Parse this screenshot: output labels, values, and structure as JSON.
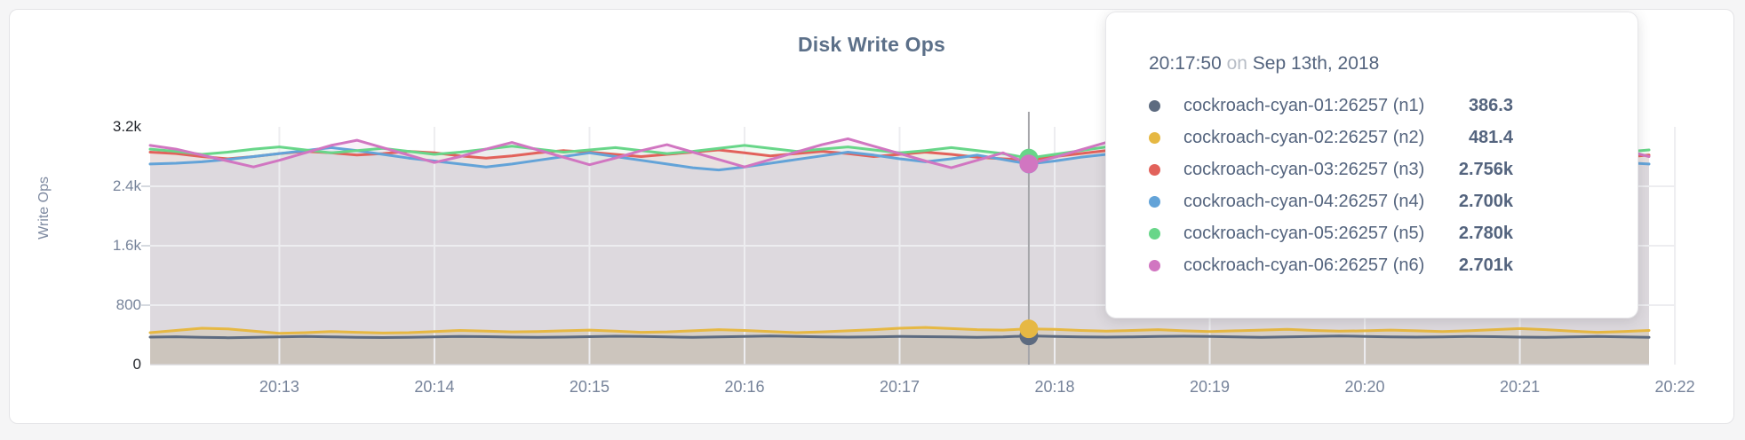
{
  "chart": {
    "title": "Disk Write Ops",
    "ylabel": "Write Ops"
  },
  "chart_data": {
    "type": "line",
    "title": "Disk Write Ops",
    "xlabel": "",
    "ylabel": "Write Ops",
    "ylim": [
      0,
      3200
    ],
    "grid": true,
    "legend_position": "tooltip",
    "x_start": "20:12:10",
    "x_step_seconds": 10,
    "x_ticks": [
      "20:13",
      "20:14",
      "20:15",
      "20:16",
      "20:17",
      "20:18",
      "20:19",
      "20:20",
      "20:21",
      "20:22"
    ],
    "y_ticks": [
      {
        "label": "3.2k",
        "value": 3200,
        "dark": true,
        "gridline": false
      },
      {
        "label": "2.4k",
        "value": 2400,
        "dark": false,
        "gridline": true
      },
      {
        "label": "1.6k",
        "value": 1600,
        "dark": false,
        "gridline": true
      },
      {
        "label": "800",
        "value": 800,
        "dark": false,
        "gridline": true
      },
      {
        "label": "0",
        "value": 0,
        "dark": true,
        "gridline": false
      }
    ],
    "hover_index": 34,
    "hover_time": "20:17:50",
    "series": [
      {
        "name": "cockroach-cyan-01:26257 (n1)",
        "color": "#5d6b80",
        "fill_opacity": 0.15,
        "values": [
          370,
          375,
          368,
          362,
          366,
          372,
          378,
          374,
          368,
          364,
          368,
          374,
          380,
          376,
          370,
          366,
          370,
          376,
          382,
          378,
          372,
          368,
          372,
          378,
          384,
          380,
          374,
          370,
          374,
          380,
          376,
          372,
          368,
          372,
          386.3,
          380,
          374,
          370,
          374,
          378,
          382,
          378,
          372,
          368,
          372,
          378,
          384,
          380,
          374,
          370,
          374,
          380,
          376,
          370,
          366,
          372,
          378,
          374,
          368
        ]
      },
      {
        "name": "cockroach-cyan-02:26257 (n2)",
        "color": "#e6b843",
        "fill_opacity": 0.18,
        "values": [
          430,
          460,
          490,
          480,
          450,
          420,
          430,
          445,
          435,
          425,
          430,
          445,
          460,
          450,
          440,
          445,
          455,
          465,
          450,
          435,
          440,
          455,
          470,
          460,
          445,
          430,
          440,
          455,
          470,
          490,
          500,
          485,
          470,
          465,
          481.4,
          475,
          460,
          450,
          460,
          470,
          455,
          445,
          455,
          465,
          475,
          460,
          450,
          455,
          465,
          455,
          445,
          455,
          470,
          485,
          470,
          450,
          435,
          445,
          460
        ]
      },
      {
        "name": "cockroach-cyan-03:26257 (n3)",
        "color": "#e2625b",
        "fill_opacity": 0.1,
        "values": [
          2860,
          2840,
          2800,
          2770,
          2800,
          2840,
          2870,
          2850,
          2820,
          2840,
          2870,
          2850,
          2810,
          2780,
          2810,
          2850,
          2880,
          2860,
          2830,
          2800,
          2830,
          2860,
          2890,
          2850,
          2810,
          2840,
          2870,
          2840,
          2800,
          2830,
          2860,
          2830,
          2790,
          2770,
          2756,
          2800,
          2840,
          2880,
          2910,
          2860,
          2820,
          2850,
          2880,
          2850,
          2810,
          2840,
          2870,
          2900,
          2860,
          2820,
          2850,
          2880,
          2840,
          2800,
          2830,
          2860,
          2830,
          2790,
          2820
        ]
      },
      {
        "name": "cockroach-cyan-04:26257 (n4)",
        "color": "#63a3d8",
        "fill_opacity": 0.1,
        "values": [
          2700,
          2710,
          2730,
          2760,
          2800,
          2840,
          2880,
          2920,
          2880,
          2830,
          2780,
          2740,
          2700,
          2660,
          2700,
          2750,
          2800,
          2850,
          2800,
          2750,
          2700,
          2650,
          2620,
          2660,
          2710,
          2760,
          2810,
          2860,
          2820,
          2770,
          2730,
          2770,
          2820,
          2760,
          2700,
          2740,
          2790,
          2830,
          2780,
          2730,
          2690,
          2730,
          2780,
          2830,
          2870,
          2820,
          2770,
          2720,
          2760,
          2810,
          2860,
          2820,
          2770,
          2730,
          2770,
          2820,
          2770,
          2720,
          2700
        ]
      },
      {
        "name": "cockroach-cyan-05:26257 (n5)",
        "color": "#68d689",
        "fill_opacity": 0.1,
        "values": [
          2900,
          2870,
          2830,
          2860,
          2900,
          2930,
          2890,
          2850,
          2880,
          2910,
          2870,
          2830,
          2860,
          2900,
          2940,
          2900,
          2860,
          2890,
          2920,
          2880,
          2840,
          2870,
          2910,
          2950,
          2910,
          2870,
          2900,
          2930,
          2890,
          2850,
          2880,
          2920,
          2880,
          2840,
          2780,
          2830,
          2880,
          2930,
          2970,
          2920,
          2870,
          2900,
          2940,
          2900,
          2860,
          2890,
          2930,
          2960,
          2920,
          2880,
          2910,
          2950,
          2910,
          2870,
          2900,
          2940,
          2900,
          2860,
          2890
        ]
      },
      {
        "name": "cockroach-cyan-06:26257 (n6)",
        "color": "#d176c1",
        "fill_opacity": 0.1,
        "values": [
          2950,
          2900,
          2820,
          2740,
          2660,
          2750,
          2850,
          2950,
          3020,
          2920,
          2820,
          2720,
          2800,
          2900,
          2990,
          2890,
          2790,
          2690,
          2780,
          2880,
          2960,
          2860,
          2760,
          2660,
          2760,
          2860,
          2960,
          3040,
          2940,
          2840,
          2740,
          2650,
          2750,
          2850,
          2701,
          2790,
          2890,
          2990,
          3060,
          2950,
          2840,
          2740,
          2650,
          2750,
          2850,
          2950,
          3030,
          2930,
          2830,
          2730,
          2820,
          2920,
          3010,
          2900,
          2790,
          2690,
          2790,
          2890,
          2800
        ]
      }
    ]
  },
  "tooltip": {
    "time": "20:17:50",
    "conjunction": "on",
    "date": "Sep 13th, 2018",
    "rows": [
      {
        "label": "cockroach-cyan-01:26257 (n1)",
        "value": "386.3"
      },
      {
        "label": "cockroach-cyan-02:26257 (n2)",
        "value": "481.4"
      },
      {
        "label": "cockroach-cyan-03:26257 (n3)",
        "value": "2.756k"
      },
      {
        "label": "cockroach-cyan-04:26257 (n4)",
        "value": "2.700k"
      },
      {
        "label": "cockroach-cyan-05:26257 (n5)",
        "value": "2.780k"
      },
      {
        "label": "cockroach-cyan-06:26257 (n6)",
        "value": "2.701k"
      }
    ]
  },
  "colors": {
    "title": "#5c7089",
    "axis_tick": "#76839a",
    "axis_tick_dark": "#25282e",
    "gridline": "#ededf0",
    "hover_line": "#a6a6aa",
    "tooltip_text": "#54647e",
    "tooltip_muted": "#b7bdc6"
  }
}
